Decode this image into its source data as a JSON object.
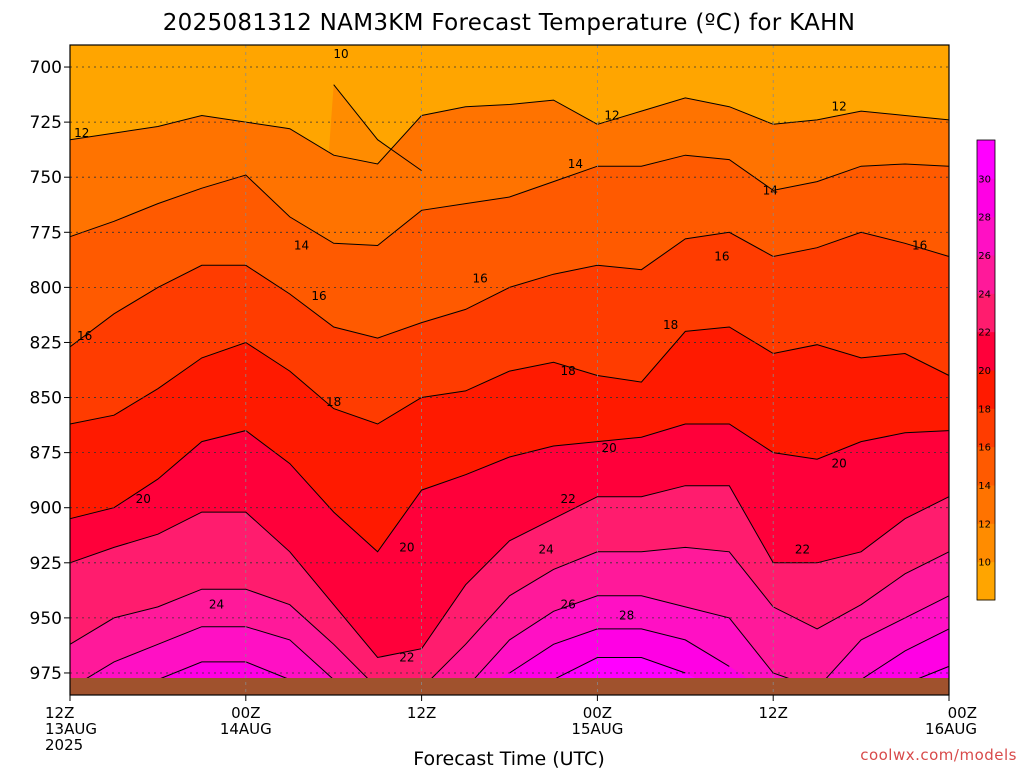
{
  "title": "2025081312 NAM3KM Forecast Temperature (ºC) for KAHN",
  "credit": "coolwx.com/models",
  "colors": {
    "ground": "#a0522d",
    "gridline": "#555555"
  },
  "chart_data": {
    "type": "heatmap",
    "title": "2025081312 NAM3KM Forecast Temperature (ºC) for KAHN",
    "xlabel": "Forecast Time (UTC)",
    "ylabel": "",
    "y_axis": {
      "quantity": "pressure (hPa)",
      "ticks": [
        700,
        725,
        750,
        775,
        800,
        825,
        850,
        875,
        900,
        925,
        950,
        975
      ],
      "range": [
        690,
        985
      ],
      "inverted": true
    },
    "x_axis": {
      "range_hours": [
        0,
        60
      ],
      "ticks": [
        {
          "hour": 0,
          "lines": [
            "12Z",
            "13AUG",
            "2025"
          ]
        },
        {
          "hour": 12,
          "lines": [
            "00Z",
            "14AUG"
          ]
        },
        {
          "hour": 24,
          "lines": [
            "12Z"
          ]
        },
        {
          "hour": 36,
          "lines": [
            "00Z",
            "15AUG"
          ]
        },
        {
          "hour": 48,
          "lines": [
            "12Z"
          ]
        },
        {
          "hour": 60,
          "lines": [
            "00Z",
            "16AUG"
          ]
        }
      ]
    },
    "grid": true,
    "contour_interval": 2,
    "colorbar": {
      "position": "right",
      "levels": [
        10,
        12,
        14,
        16,
        18,
        20,
        22,
        24,
        26,
        28,
        30
      ],
      "colors": [
        "#ffa500",
        "#ff8c00",
        "#ff7300",
        "#ff5a00",
        "#ff3c00",
        "#ff1a00",
        "#ff003a",
        "#ff1c6e",
        "#ff199a",
        "#ff10c4",
        "#ff00e4",
        "#ff00ff"
      ]
    },
    "hours": [
      0,
      3,
      6,
      9,
      12,
      15,
      18,
      21,
      24,
      27,
      30,
      33,
      36,
      39,
      42,
      45,
      48,
      51,
      54,
      57,
      60
    ],
    "isotherm_pressure_hPa": {
      "10": [
        null,
        null,
        null,
        null,
        null,
        null,
        708,
        733,
        747,
        null,
        null,
        null,
        null,
        null,
        null,
        null,
        null,
        null,
        null,
        null,
        null
      ],
      "12": [
        733,
        730,
        727,
        722,
        725,
        728,
        740,
        744,
        722,
        718,
        717,
        715,
        726,
        720,
        714,
        718,
        726,
        724,
        720,
        722,
        724
      ],
      "14": [
        777,
        770,
        762,
        755,
        749,
        768,
        780,
        781,
        765,
        762,
        759,
        752,
        745,
        745,
        740,
        742,
        756,
        752,
        745,
        744,
        745
      ],
      "16": [
        827,
        812,
        800,
        790,
        790,
        803,
        818,
        823,
        816,
        810,
        800,
        794,
        790,
        792,
        778,
        775,
        786,
        782,
        775,
        780,
        786
      ],
      "18": [
        862,
        858,
        846,
        832,
        825,
        838,
        855,
        862,
        850,
        847,
        838,
        834,
        840,
        843,
        820,
        818,
        830,
        826,
        832,
        830,
        840
      ],
      "20": [
        905,
        900,
        887,
        870,
        865,
        880,
        902,
        920,
        892,
        885,
        877,
        872,
        870,
        868,
        862,
        862,
        875,
        878,
        870,
        866,
        865
      ],
      "22": [
        925,
        918,
        912,
        902,
        902,
        920,
        944,
        968,
        964,
        935,
        915,
        905,
        895,
        895,
        890,
        890,
        925,
        925,
        920,
        905,
        895
      ],
      "24": [
        962,
        950,
        945,
        937,
        937,
        944,
        962,
        982,
        982,
        962,
        940,
        928,
        920,
        920,
        918,
        920,
        945,
        955,
        944,
        930,
        920
      ],
      "26": [
        982,
        970,
        962,
        954,
        954,
        960,
        978,
        null,
        null,
        982,
        960,
        947,
        940,
        940,
        945,
        950,
        975,
        982,
        960,
        950,
        940
      ],
      "28": [
        null,
        982,
        978,
        970,
        970,
        978,
        null,
        null,
        null,
        null,
        975,
        962,
        955,
        955,
        960,
        972,
        null,
        null,
        978,
        965,
        955
      ],
      "30": [
        null,
        null,
        null,
        982,
        982,
        null,
        null,
        null,
        null,
        null,
        null,
        978,
        968,
        968,
        975,
        null,
        null,
        null,
        null,
        980,
        972
      ]
    },
    "contour_labels": [
      {
        "value": 10,
        "hour": 18.5,
        "p": 694
      },
      {
        "value": 12,
        "hour": 0.8,
        "p": 730
      },
      {
        "value": 12,
        "hour": 37.0,
        "p": 722
      },
      {
        "value": 12,
        "hour": 52.5,
        "p": 718
      },
      {
        "value": 14,
        "hour": 15.8,
        "p": 781
      },
      {
        "value": 14,
        "hour": 34.5,
        "p": 744
      },
      {
        "value": 14,
        "hour": 47.8,
        "p": 756
      },
      {
        "value": 16,
        "hour": 1.0,
        "p": 822
      },
      {
        "value": 16,
        "hour": 17.0,
        "p": 804
      },
      {
        "value": 16,
        "hour": 28.0,
        "p": 796
      },
      {
        "value": 16,
        "hour": 44.5,
        "p": 786
      },
      {
        "value": 16,
        "hour": 58.0,
        "p": 781
      },
      {
        "value": 18,
        "hour": 18.0,
        "p": 852
      },
      {
        "value": 18,
        "hour": 34.0,
        "p": 838
      },
      {
        "value": 18,
        "hour": 41.0,
        "p": 817
      },
      {
        "value": 20,
        "hour": 5.0,
        "p": 896
      },
      {
        "value": 20,
        "hour": 23.0,
        "p": 918
      },
      {
        "value": 20,
        "hour": 36.8,
        "p": 873
      },
      {
        "value": 20,
        "hour": 52.5,
        "p": 880
      },
      {
        "value": 22,
        "hour": 23.0,
        "p": 968
      },
      {
        "value": 22,
        "hour": 34.0,
        "p": 896
      },
      {
        "value": 22,
        "hour": 50.0,
        "p": 919
      },
      {
        "value": 24,
        "hour": 10.0,
        "p": 944
      },
      {
        "value": 24,
        "hour": 32.5,
        "p": 919
      },
      {
        "value": 26,
        "hour": 34.0,
        "p": 944
      },
      {
        "value": 28,
        "hour": 38.0,
        "p": 949
      }
    ]
  }
}
